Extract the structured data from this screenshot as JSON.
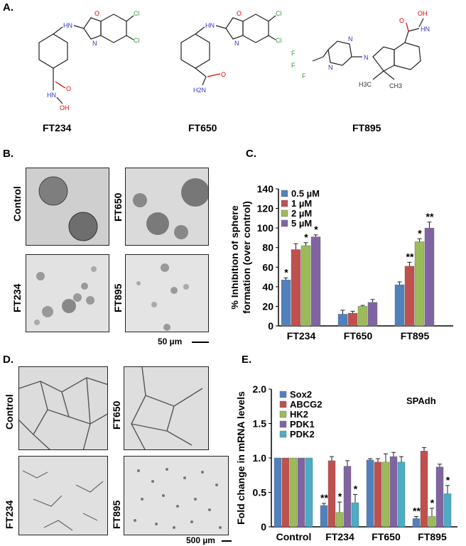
{
  "panels": {
    "A": "A.",
    "B": "B.",
    "C": "C.",
    "D": "D.",
    "E": "E."
  },
  "structures": {
    "compounds": [
      "FT234",
      "FT650",
      "FT895"
    ],
    "atoms": {
      "hn": "HN",
      "o": "O",
      "n": "N",
      "cl": "Cl",
      "hn2": "HN",
      "oh": "OH",
      "h2n": "H2N",
      "f": "F",
      "ch3": "H3C",
      "ch3b": "CH3"
    }
  },
  "images_B": {
    "row_labels": [
      "Control",
      "FT234"
    ],
    "col_labels": [
      "FT650",
      "FT895"
    ],
    "scalebar": "50 µm"
  },
  "images_D": {
    "row_labels": [
      "Control",
      "FT234"
    ],
    "col_labels": [
      "FT650",
      "FT895"
    ],
    "scalebar": "500 µm"
  },
  "chart_data": [
    {
      "type": "bar",
      "categories": [
        "FT234",
        "FT650",
        "FT895"
      ],
      "ylabel": "% Inhibition of sphere formation (over control)",
      "ylim": [
        0,
        140
      ],
      "yticks": [
        0,
        20,
        40,
        60,
        80,
        100,
        120,
        140
      ],
      "legend_position": "top-left",
      "series": [
        {
          "name": "0.5 µM",
          "color": "#4f81bd",
          "values": [
            47,
            12,
            42
          ],
          "errors": [
            2,
            4,
            3
          ],
          "sig": [
            "*",
            "",
            ""
          ]
        },
        {
          "name": "1 µM",
          "color": "#c0504d",
          "values": [
            78,
            13,
            61
          ],
          "errors": [
            6,
            2,
            4
          ],
          "sig": [
            "",
            "",
            "**"
          ]
        },
        {
          "name": "2 µM",
          "color": "#9bbb59",
          "values": [
            82,
            20,
            86
          ],
          "errors": [
            3,
            1,
            3
          ],
          "sig": [
            "*",
            "",
            "*"
          ]
        },
        {
          "name": "5 µM",
          "color": "#8064a2",
          "values": [
            91,
            24,
            100
          ],
          "errors": [
            2,
            3,
            6
          ],
          "sig": [
            "*",
            "",
            "**"
          ]
        }
      ]
    },
    {
      "type": "bar",
      "categories": [
        "Control",
        "FT234",
        "FT650",
        "FT895"
      ],
      "ylabel": "Fold change in mRNA levels",
      "annotation": "SPAdh",
      "ylim": [
        0,
        2.0
      ],
      "yticks": [
        "0",
        "0.5",
        "1.0",
        "1.5",
        "2.0"
      ],
      "legend_position": "top-left",
      "series": [
        {
          "name": "Sox2",
          "color": "#4f81bd",
          "values": [
            1.0,
            0.31,
            0.97,
            0.12
          ],
          "errors": [
            0,
            0.03,
            0.02,
            0.03
          ],
          "sig": [
            "",
            "**",
            "",
            "**"
          ]
        },
        {
          "name": "ABCG2",
          "color": "#c0504d",
          "values": [
            1.0,
            0.96,
            0.94,
            1.1
          ],
          "errors": [
            0,
            0.06,
            0.05,
            0.05
          ],
          "sig": [
            "",
            "",
            "",
            ""
          ]
        },
        {
          "name": "HK2",
          "color": "#9bbb59",
          "values": [
            1.0,
            0.21,
            0.94,
            0.15
          ],
          "errors": [
            0,
            0.15,
            0.12,
            0.12
          ],
          "sig": [
            "",
            "*",
            "",
            "*"
          ]
        },
        {
          "name": "PDK1",
          "color": "#8064a2",
          "values": [
            1.0,
            0.88,
            1.02,
            0.87
          ],
          "errors": [
            0,
            0.08,
            0.06,
            0.04
          ],
          "sig": [
            "",
            "",
            "",
            ""
          ]
        },
        {
          "name": "PDK2",
          "color": "#4bacc6",
          "values": [
            1.0,
            0.35,
            0.94,
            0.48
          ],
          "errors": [
            0,
            0.12,
            0.08,
            0.12
          ],
          "sig": [
            "",
            "*",
            "",
            "*"
          ]
        }
      ]
    }
  ]
}
